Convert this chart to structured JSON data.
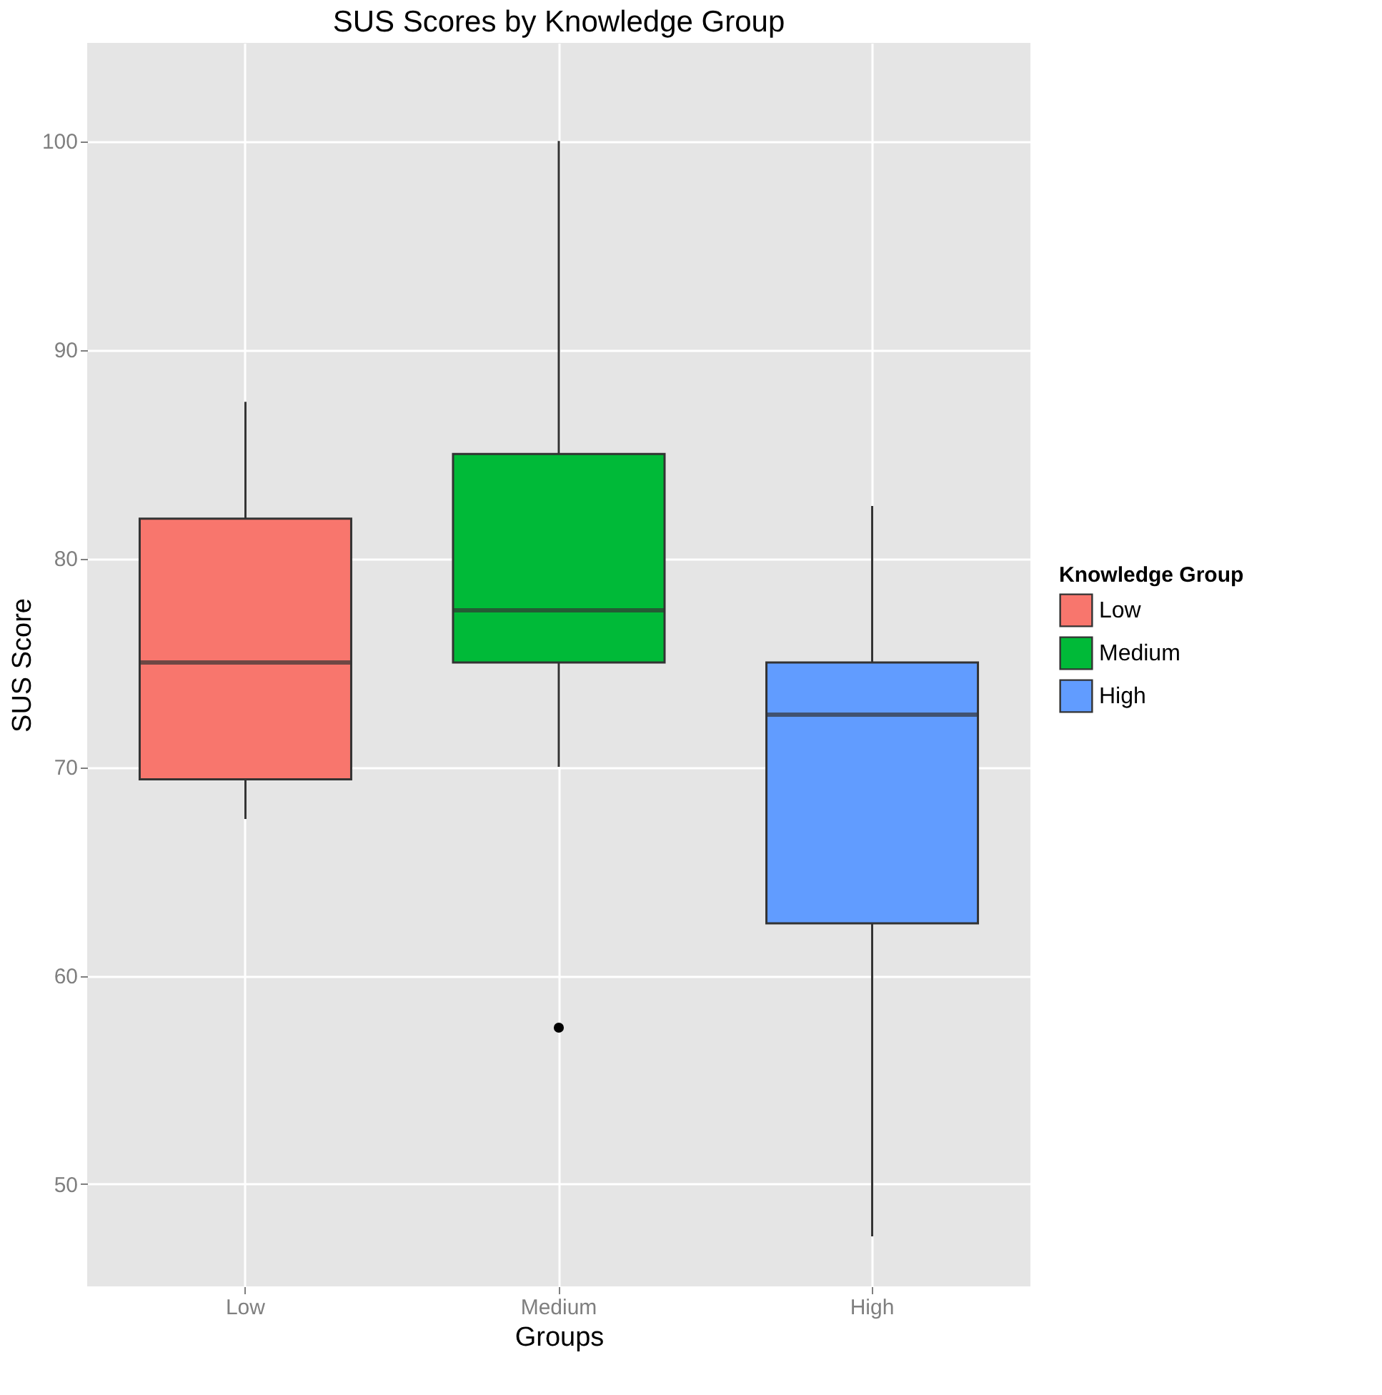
{
  "chart_data": {
    "type": "box",
    "title": "SUS Scores by Knowledge Group",
    "xlabel": "Groups",
    "ylabel": "SUS Score",
    "legend_title": "Knowledge Group",
    "categories": [
      "Low",
      "Medium",
      "High"
    ],
    "series": [
      {
        "name": "Low",
        "color": "#f8766d",
        "boxes": [
          {
            "low": 67.5,
            "q1": 69.4,
            "median": 75,
            "q3": 81.9,
            "high": 87.5
          },
          null,
          null
        ]
      },
      {
        "name": "Medium",
        "color": "#00ba38",
        "boxes": [
          null,
          {
            "low": 70,
            "q1": 75,
            "median": 77.5,
            "q3": 85,
            "high": 100,
            "outliers": [
              57.5
            ]
          },
          null
        ]
      },
      {
        "name": "High",
        "color": "#619cff",
        "boxes": [
          null,
          null,
          {
            "low": 47.5,
            "q1": 62.5,
            "median": 72.5,
            "q3": 75,
            "high": 82.5
          }
        ]
      }
    ],
    "ylim": [
      45.1,
      104.7
    ],
    "yticks": [
      50,
      60,
      70,
      80,
      90,
      100
    ],
    "grid": true,
    "legend": "right"
  }
}
